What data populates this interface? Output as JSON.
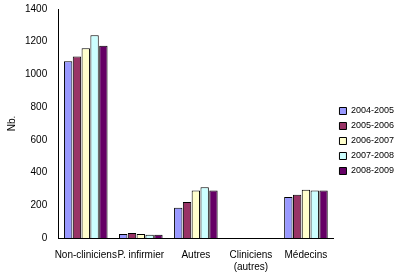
{
  "chart_data": {
    "type": "bar",
    "y_label": "Nb.",
    "categories": [
      "Non-cliniciens",
      "P. infirmier",
      "Autres",
      "Cliniciens (autres)",
      "Médecins"
    ],
    "series": [
      {
        "name": "2004-2005",
        "color": "#9999ff",
        "values": [
          1080,
          25,
          185,
          0,
          250
        ]
      },
      {
        "name": "2005-2006",
        "color": "#993366",
        "values": [
          1110,
          30,
          220,
          0,
          265
        ]
      },
      {
        "name": "2006-2007",
        "color": "#ffffcc",
        "values": [
          1160,
          25,
          290,
          0,
          295
        ]
      },
      {
        "name": "2007-2008",
        "color": "#ccffff",
        "values": [
          1240,
          20,
          310,
          0,
          290
        ]
      },
      {
        "name": "2008-2009",
        "color": "#660066",
        "values": [
          1175,
          20,
          290,
          0,
          290
        ]
      }
    ],
    "ylim": [
      0,
      1400
    ],
    "yticks": [
      0,
      200,
      400,
      600,
      800,
      1000,
      1200,
      1400
    ],
    "grid": false,
    "legend": "right"
  }
}
